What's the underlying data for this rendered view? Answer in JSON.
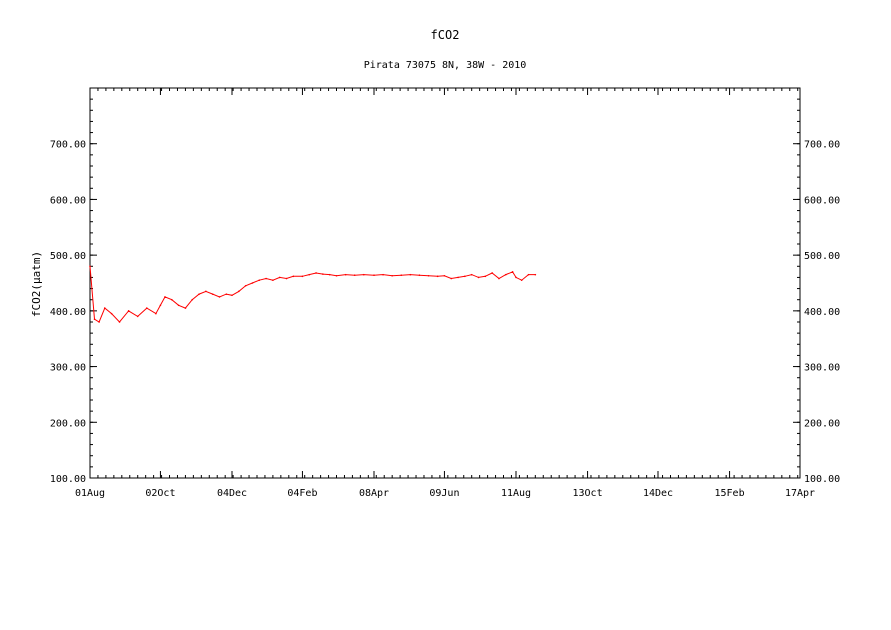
{
  "chart_data": {
    "type": "line",
    "title": "fCO2",
    "subtitle": "Pirata 73075 8N, 38W - 2010",
    "ylabel": "fCO2(μatm)",
    "xlabel": "",
    "ylim": [
      100,
      800
    ],
    "y_ticks": [
      "100.00",
      "200.00",
      "300.00",
      "400.00",
      "500.00",
      "600.00",
      "700.00"
    ],
    "y_tick_values": [
      100,
      200,
      300,
      400,
      500,
      600,
      700
    ],
    "x_ticks": [
      "01Aug",
      "02Oct",
      "04Dec",
      "04Feb",
      "08Apr",
      "09Jun",
      "11Aug",
      "13Oct",
      "14Dec",
      "15Feb",
      "17Apr"
    ],
    "series_color": "#ff0000",
    "grid": false,
    "series": [
      {
        "points": [
          [
            "01Aug",
            480
          ],
          [
            "05Aug",
            385
          ],
          [
            "09Aug",
            380
          ],
          [
            "14Aug",
            405
          ],
          [
            "20Aug",
            395
          ],
          [
            "27Aug",
            380
          ],
          [
            "04Sep",
            400
          ],
          [
            "12Sep",
            390
          ],
          [
            "20Sep",
            405
          ],
          [
            "28Sep",
            395
          ],
          [
            "02Oct",
            410
          ],
          [
            "06Oct",
            425
          ],
          [
            "12Oct",
            420
          ],
          [
            "18Oct",
            410
          ],
          [
            "24Oct",
            405
          ],
          [
            "30Oct",
            420
          ],
          [
            "05Nov",
            430
          ],
          [
            "11Nov",
            435
          ],
          [
            "17Nov",
            430
          ],
          [
            "23Nov",
            425
          ],
          [
            "29Nov",
            430
          ],
          [
            "04Dec",
            428
          ],
          [
            "10Dec",
            435
          ],
          [
            "16Dec",
            445
          ],
          [
            "22Dec",
            450
          ],
          [
            "28Dec",
            455
          ],
          [
            "03Jan",
            458
          ],
          [
            "09Jan",
            455
          ],
          [
            "15Jan",
            460
          ],
          [
            "21Jan",
            458
          ],
          [
            "27Jan",
            462
          ],
          [
            "04Feb",
            462
          ],
          [
            "10Feb",
            465
          ],
          [
            "16Feb",
            468
          ],
          [
            "22Feb",
            466
          ],
          [
            "28Feb",
            465
          ],
          [
            "06Mar",
            463
          ],
          [
            "14Mar",
            465
          ],
          [
            "22Mar",
            464
          ],
          [
            "30Mar",
            465
          ],
          [
            "08Apr",
            464
          ],
          [
            "16Apr",
            465
          ],
          [
            "24Apr",
            463
          ],
          [
            "02May",
            464
          ],
          [
            "10May",
            465
          ],
          [
            "18May",
            464
          ],
          [
            "26May",
            463
          ],
          [
            "03Jun",
            462
          ],
          [
            "09Jun",
            463
          ],
          [
            "15Jun",
            458
          ],
          [
            "21Jun",
            460
          ],
          [
            "27Jun",
            462
          ],
          [
            "03Jul",
            465
          ],
          [
            "09Jul",
            460
          ],
          [
            "15Jul",
            462
          ],
          [
            "21Jul",
            468
          ],
          [
            "27Jul",
            458
          ],
          [
            "02Aug",
            465
          ],
          [
            "08Aug",
            470
          ],
          [
            "11Aug",
            460
          ],
          [
            "16Aug",
            455
          ],
          [
            "22Aug",
            465
          ],
          [
            "28Aug",
            465
          ]
        ]
      }
    ]
  }
}
